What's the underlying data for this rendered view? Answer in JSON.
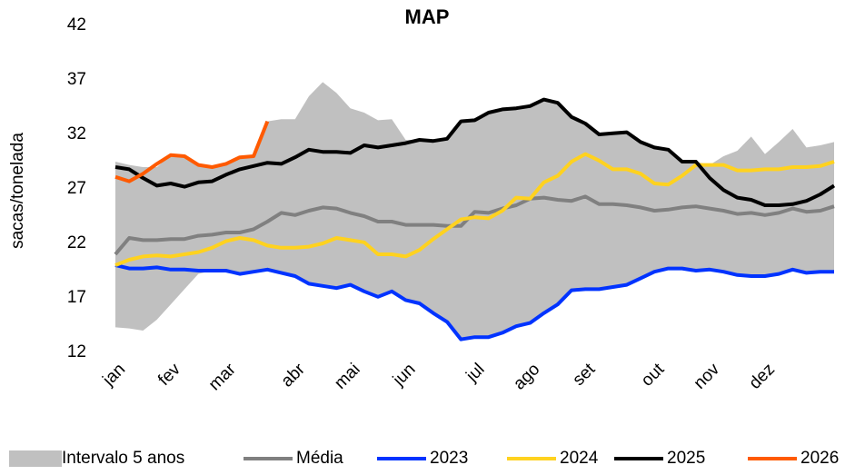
{
  "chart_data": {
    "type": "line",
    "title": "MAP",
    "ylabel": "sacas/tonelada",
    "categories": [
      "jan",
      null,
      null,
      null,
      "fev",
      null,
      null,
      null,
      "mar",
      null,
      null,
      null,
      null,
      "abr",
      null,
      null,
      null,
      "mai",
      null,
      null,
      null,
      "jun",
      null,
      null,
      null,
      null,
      "jul",
      null,
      null,
      null,
      "ago",
      null,
      null,
      null,
      "set",
      null,
      null,
      null,
      null,
      "out",
      null,
      null,
      null,
      "nov",
      null,
      null,
      null,
      "dez",
      null,
      null,
      null,
      null,
      null
    ],
    "ylim": [
      12,
      42
    ],
    "yticks": [
      12,
      17,
      22,
      27,
      32,
      37,
      42
    ],
    "grid": false,
    "legend": "bottom",
    "series": [
      {
        "name": "Intervalo 5 anos",
        "color": "#c0c0c0",
        "kind": "band",
        "low": [
          14.3,
          14.2,
          14.0,
          15.0,
          16.4,
          17.8,
          19.2,
          19.5,
          19.5,
          19.2,
          19.4,
          19.6,
          19.3,
          19.0,
          18.3,
          18.1,
          17.9,
          18.2,
          17.6,
          17.1,
          17.6,
          16.8,
          16.5,
          15.6,
          14.8,
          13.2,
          13.4,
          13.4,
          13.8,
          14.4,
          14.7,
          15.6,
          16.4,
          17.7,
          17.8,
          17.8,
          18.0,
          18.2,
          18.8,
          19.4,
          19.7,
          19.7,
          19.5,
          19.6,
          19.4,
          19.1,
          19.0,
          19.0,
          19.2,
          19.6,
          19.3,
          19.4,
          19.4
        ],
        "high": [
          29.5,
          29.2,
          29.0,
          29.0,
          30.1,
          30.0,
          29.2,
          29.0,
          29.3,
          29.9,
          30.0,
          33.2,
          33.4,
          33.4,
          35.5,
          36.8,
          35.8,
          34.4,
          34.0,
          33.3,
          33.4,
          31.5,
          31.5,
          31.4,
          31.6,
          33.2,
          33.3,
          34.0,
          34.3,
          34.4,
          34.6,
          35.2,
          34.9,
          33.6,
          33.0,
          32.0,
          32.1,
          32.2,
          31.3,
          30.8,
          30.6,
          29.5,
          29.5,
          29.2,
          30.0,
          30.5,
          31.8,
          30.2,
          31.3,
          32.5,
          30.8,
          31.0,
          31.3
        ]
      },
      {
        "name": "Média",
        "color": "#808080",
        "values": [
          21.0,
          22.5,
          22.3,
          22.3,
          22.4,
          22.4,
          22.7,
          22.8,
          23.0,
          23.0,
          23.3,
          24.0,
          24.8,
          24.6,
          25.0,
          25.3,
          25.2,
          24.8,
          24.5,
          24.0,
          24.0,
          23.7,
          23.7,
          23.7,
          23.6,
          23.6,
          24.9,
          24.8,
          25.2,
          25.5,
          26.1,
          26.2,
          26.0,
          25.9,
          26.3,
          25.6,
          25.6,
          25.5,
          25.3,
          25.0,
          25.1,
          25.3,
          25.4,
          25.2,
          25.0,
          24.7,
          24.8,
          24.6,
          24.8,
          25.2,
          24.9,
          25.0,
          25.4
        ]
      },
      {
        "name": "2023",
        "color": "#0033ff",
        "values": [
          20.0,
          19.7,
          19.7,
          19.8,
          19.6,
          19.6,
          19.5,
          19.5,
          19.5,
          19.2,
          19.4,
          19.6,
          19.3,
          19.0,
          18.3,
          18.1,
          17.9,
          18.2,
          17.6,
          17.1,
          17.6,
          16.8,
          16.5,
          15.6,
          14.8,
          13.2,
          13.4,
          13.4,
          13.8,
          14.4,
          14.7,
          15.6,
          16.4,
          17.7,
          17.8,
          17.8,
          18.0,
          18.2,
          18.8,
          19.4,
          19.7,
          19.7,
          19.5,
          19.6,
          19.4,
          19.1,
          19.0,
          19.0,
          19.2,
          19.6,
          19.3,
          19.4,
          19.4
        ]
      },
      {
        "name": "2024",
        "color": "#ffd21f",
        "values": [
          20.0,
          20.5,
          20.8,
          20.9,
          20.8,
          21.0,
          21.2,
          21.6,
          22.2,
          22.5,
          22.3,
          21.8,
          21.6,
          21.6,
          21.7,
          22.0,
          22.5,
          22.3,
          22.1,
          21.0,
          21.0,
          20.8,
          21.4,
          22.4,
          23.3,
          24.2,
          24.4,
          24.3,
          25.0,
          26.2,
          26.1,
          27.6,
          28.2,
          29.5,
          30.2,
          29.6,
          28.8,
          28.8,
          28.4,
          27.5,
          27.4,
          28.2,
          29.2,
          29.2,
          29.2,
          28.7,
          28.7,
          28.8,
          28.8,
          29.0,
          29.0,
          29.1,
          29.5
        ]
      },
      {
        "name": "2025",
        "color": "#000000",
        "values": [
          29.0,
          28.8,
          28.0,
          27.3,
          27.5,
          27.2,
          27.6,
          27.7,
          28.3,
          28.8,
          29.1,
          29.4,
          29.3,
          29.9,
          30.6,
          30.4,
          30.4,
          30.3,
          31.0,
          30.8,
          31.0,
          31.2,
          31.5,
          31.4,
          31.6,
          33.2,
          33.3,
          34.0,
          34.3,
          34.4,
          34.6,
          35.2,
          34.9,
          33.6,
          33.0,
          32.0,
          32.1,
          32.2,
          31.3,
          30.8,
          30.6,
          29.5,
          29.5,
          28.0,
          26.9,
          26.2,
          26.0,
          25.5,
          25.5,
          25.6,
          25.9,
          26.5,
          27.3
        ]
      },
      {
        "name": "2026",
        "color": "#ff5a00",
        "values": [
          28.1,
          27.7,
          28.4,
          29.3,
          30.1,
          30.0,
          29.2,
          29.0,
          29.3,
          29.9,
          30.0,
          33.2,
          null,
          null,
          null,
          null,
          null,
          null,
          null,
          null,
          null,
          null,
          null,
          null,
          null,
          null,
          null,
          null,
          null,
          null,
          null,
          null,
          null,
          null,
          null,
          null,
          null,
          null,
          null,
          null,
          null,
          null,
          null,
          null,
          null,
          null,
          null,
          null,
          null,
          null,
          null,
          null,
          null
        ]
      }
    ]
  }
}
